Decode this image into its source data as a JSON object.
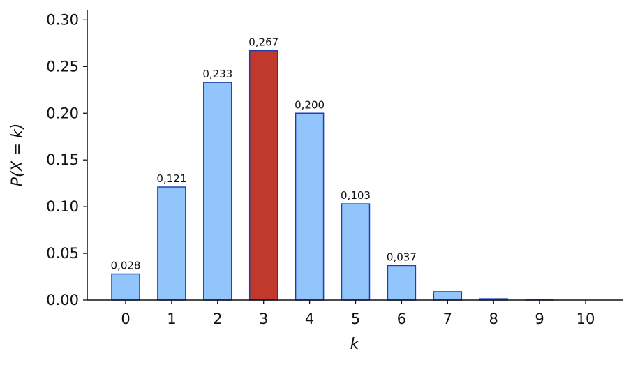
{
  "chart_data": {
    "type": "bar",
    "xlabel": "k",
    "ylabel": "P(X = k)",
    "categories": [
      "0",
      "1",
      "2",
      "3",
      "4",
      "5",
      "6",
      "7",
      "8",
      "9",
      "10"
    ],
    "values": [
      0.028,
      0.121,
      0.233,
      0.267,
      0.2,
      0.103,
      0.037,
      0.009,
      0.0014,
      0.0001,
      0.0
    ],
    "value_labels": [
      "0,028",
      "0,121",
      "0,233",
      "0,267",
      "0,200",
      "0,103",
      "0,037",
      null,
      null,
      null,
      null
    ],
    "colors": [
      "#93c5fd",
      "#93c5fd",
      "#93c5fd",
      "#c0392b",
      "#93c5fd",
      "#93c5fd",
      "#93c5fd",
      "#93c5fd",
      "#93c5fd",
      "#93c5fd",
      "#93c5fd"
    ],
    "edge_color": "#1e40af",
    "ylim": [
      0,
      0.31
    ],
    "yticks": [
      {
        "value": 0,
        "label": "0.00"
      },
      {
        "value": 0.05,
        "label": "0.05"
      },
      {
        "value": 0.1,
        "label": "0.10"
      },
      {
        "value": 0.15,
        "label": "0.15"
      },
      {
        "value": 0.2,
        "label": "0.20"
      },
      {
        "value": 0.25,
        "label": "0.25"
      },
      {
        "value": 0.3,
        "label": "0.30"
      }
    ]
  }
}
